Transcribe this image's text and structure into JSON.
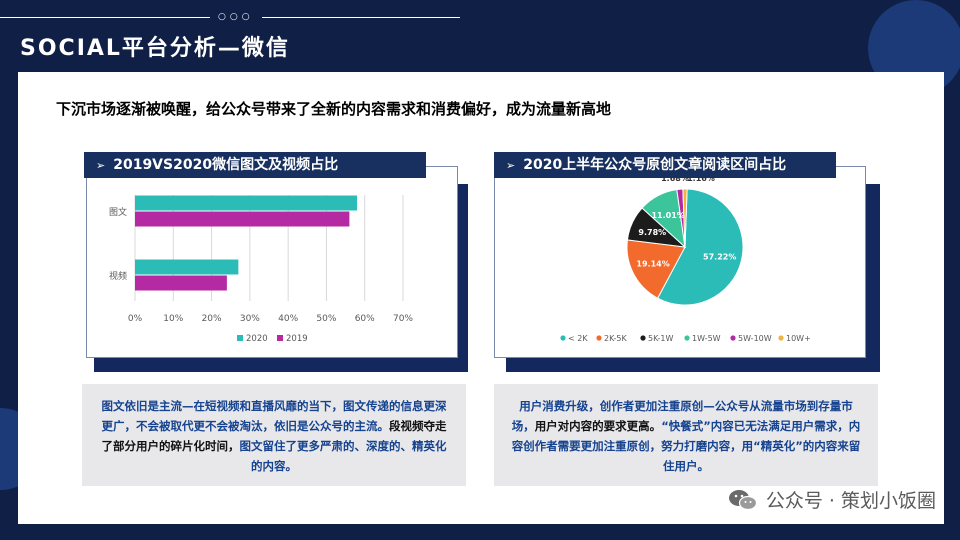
{
  "header": {
    "title": "SOCIAL平台分析—微信",
    "dots": "○○○"
  },
  "subtitle": "下沉市场逐渐被唤醒，给公众号带来了全新的内容需求和消费偏好，成为流量新高地",
  "left_section": {
    "header": "2019VS2020微信图文及视频占比",
    "arrow": "➢",
    "text_parts": [
      {
        "t": "图文依旧是主流—在短视频和直播风靡的当下，",
        "c": "blue"
      },
      {
        "t": "图文传递的信息更深更广，不会被取代更不会被淘汰，依旧是公众号的主流。",
        "c": "blue"
      },
      {
        "t": "段视频夺走了部分用户的碎片化时间，",
        "c": "black"
      },
      {
        "t": "图文留住了更多严肃的、深度的、精英化的内容。",
        "c": "blue"
      }
    ]
  },
  "right_section": {
    "header": "2020上半年公众号原创文章阅读区间占比",
    "arrow": "➢",
    "text_parts": [
      {
        "t": "用户消费升级，创作者更加注重原创—公众号从流量市场到存量市场，",
        "c": "blue"
      },
      {
        "t": "用户对内容的要求更高。",
        "c": "black"
      },
      {
        "t": "“快餐式”内容已无法满足用户需求，内容创作者需要更加注重原创，努力打磨内容，用“精英化”的内容来留住用户。",
        "c": "blue"
      }
    ]
  },
  "chart_data": [
    {
      "type": "bar",
      "orientation": "horizontal",
      "categories": [
        "图文",
        "视频"
      ],
      "series": [
        {
          "name": "2020",
          "values": [
            58,
            27
          ],
          "color": "#2bbcb8"
        },
        {
          "name": "2019",
          "values": [
            56,
            24
          ],
          "color": "#b52aa3"
        }
      ],
      "xlim": [
        0,
        70
      ],
      "x_ticks": [
        "0%",
        "10%",
        "20%",
        "30%",
        "40%",
        "50%",
        "60%",
        "70%"
      ],
      "grid": true,
      "legend": "bottom"
    },
    {
      "type": "pie",
      "labels": [
        "< 2K",
        "2K-5K",
        "5K-1W",
        "1W-5W",
        "5W-10W",
        "10W+"
      ],
      "values": [
        57.22,
        19.14,
        9.78,
        11.01,
        1.68,
        1.16
      ],
      "value_labels": [
        "57.22%",
        "19.14%",
        "9.78%",
        "11.01%",
        "1.68%",
        "1.16%"
      ],
      "colors": [
        "#2bbcb8",
        "#f26a2c",
        "#1c1c1c",
        "#3cc59b",
        "#b52aa3",
        "#f2b43c"
      ],
      "legend": "bottom"
    }
  ],
  "watermark": {
    "text": "公众号 · 策划小饭圈",
    "icon": "wechat-icon"
  }
}
